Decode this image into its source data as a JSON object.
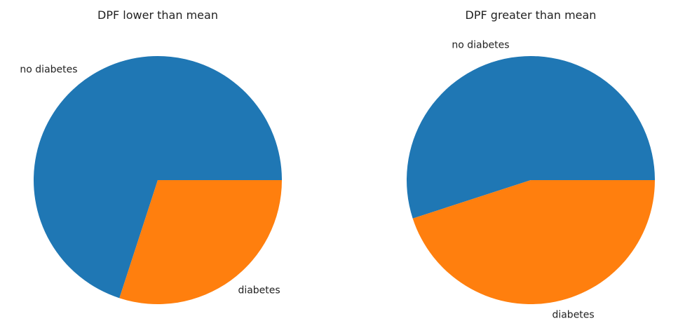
{
  "colors": {
    "series": [
      "#1f77b4",
      "#ff7f0e"
    ],
    "text": "#222222",
    "background": "#ffffff"
  },
  "chart_data": [
    {
      "type": "pie",
      "title": "DPF lower than mean",
      "categories": [
        "no diabetes",
        "diabetes"
      ],
      "values": [
        0.7,
        0.3
      ],
      "start_angle_deg": 0,
      "direction": "counterclockwise",
      "legend": "none"
    },
    {
      "type": "pie",
      "title": "DPF greater than mean",
      "categories": [
        "no diabetes",
        "diabetes"
      ],
      "values": [
        0.55,
        0.45
      ],
      "start_angle_deg": 0,
      "direction": "counterclockwise",
      "legend": "none"
    }
  ]
}
